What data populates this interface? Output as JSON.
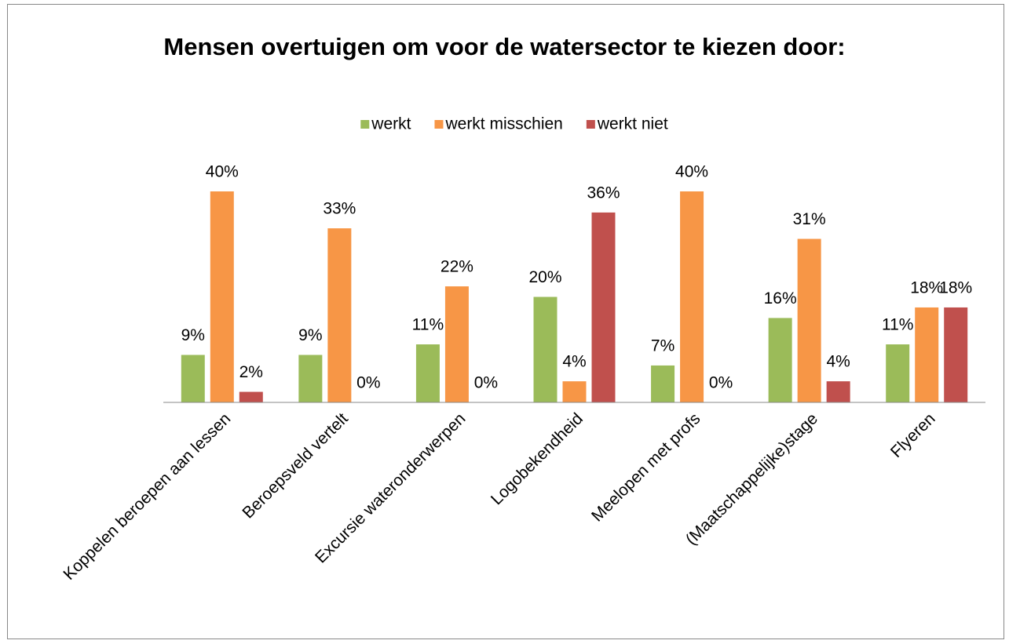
{
  "chart_data": {
    "type": "bar",
    "title": "Mensen overtuigen om voor de watersector te kiezen door:",
    "categories": [
      "Koppelen beroepen aan lessen",
      "Beroepsveld vertelt",
      "Excursie wateronderwerpen",
      "Logobekendheid",
      "Meelopen met profs",
      "(Maatschappelijke)stage",
      "Flyeren"
    ],
    "series": [
      {
        "name": "werkt",
        "color": "#9bbb59",
        "values": [
          9,
          9,
          11,
          20,
          7,
          16,
          11
        ],
        "value_labels": [
          "9%",
          "9%",
          "11%",
          "20%",
          "7%",
          "16%",
          "11%"
        ]
      },
      {
        "name": "werkt misschien",
        "color": "#f79646",
        "values": [
          40,
          33,
          22,
          4,
          40,
          31,
          18
        ],
        "value_labels": [
          "40%",
          "33%",
          "22%",
          "4%",
          "40%",
          "31%",
          "18%"
        ]
      },
      {
        "name": "werkt niet",
        "color": "#c0504d",
        "values": [
          2,
          0,
          0,
          36,
          0,
          4,
          18
        ],
        "value_labels": [
          "2%",
          "0%",
          "0%",
          "36%",
          "0%",
          "4%",
          "18%"
        ]
      }
    ],
    "legend": "top"
  }
}
